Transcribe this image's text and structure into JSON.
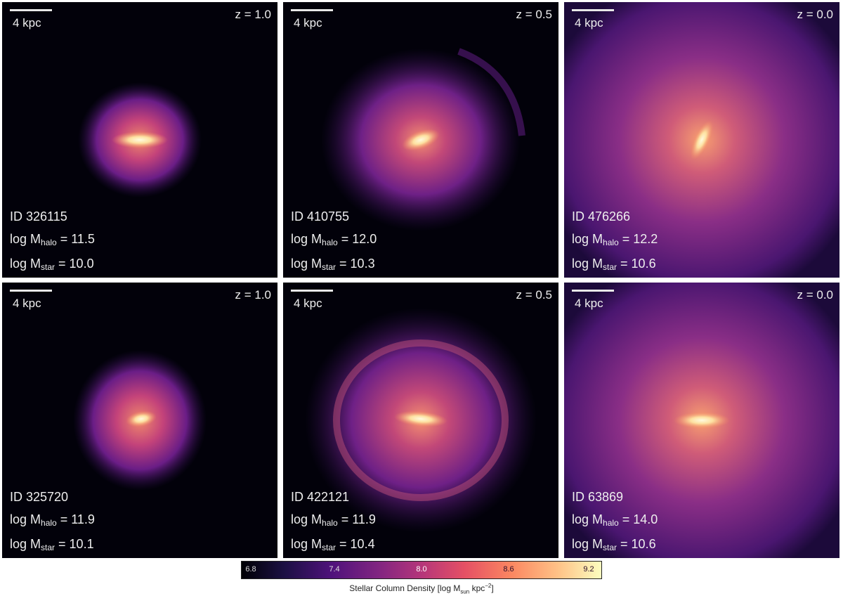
{
  "panels": [
    {
      "scale": "4 kpc",
      "z": "z = 1.0",
      "id": "ID 326115",
      "mhalo_prefix": "log M",
      "mhalo_sub": "halo",
      "mhalo_val": " = 11.5",
      "mstar_prefix": "log M",
      "mstar_sub": "star",
      "mstar_val": " = 10.0"
    },
    {
      "scale": "4 kpc",
      "z": "z = 0.5",
      "id": "ID 410755",
      "mhalo_prefix": "log M",
      "mhalo_sub": "halo",
      "mhalo_val": " = 12.0",
      "mstar_prefix": "log M",
      "mstar_sub": "star",
      "mstar_val": " = 10.3"
    },
    {
      "scale": "4 kpc",
      "z": "z = 0.0",
      "id": "ID 476266",
      "mhalo_prefix": "log M",
      "mhalo_sub": "halo",
      "mhalo_val": " = 12.2",
      "mstar_prefix": "log M",
      "mstar_sub": "star",
      "mstar_val": " = 10.6"
    },
    {
      "scale": "4 kpc",
      "z": "z = 1.0",
      "id": "ID 325720",
      "mhalo_prefix": "log M",
      "mhalo_sub": "halo",
      "mhalo_val": " = 11.9",
      "mstar_prefix": "log M",
      "mstar_sub": "star",
      "mstar_val": " = 10.1"
    },
    {
      "scale": "4 kpc",
      "z": "z = 0.5",
      "id": "ID 422121",
      "mhalo_prefix": "log M",
      "mhalo_sub": "halo",
      "mhalo_val": " = 11.9",
      "mstar_prefix": "log M",
      "mstar_sub": "star",
      "mstar_val": " = 10.4"
    },
    {
      "scale": "4 kpc",
      "z": "z = 0.0",
      "id": "ID 63869",
      "mhalo_prefix": "log M",
      "mhalo_sub": "halo",
      "mhalo_val": " = 14.0",
      "mstar_prefix": "log M",
      "mstar_sub": "star",
      "mstar_val": " = 10.6"
    }
  ],
  "colorbar": {
    "ticks": [
      "6.8",
      "7.4",
      "8.0",
      "8.6",
      "9.2"
    ],
    "label_prefix": "Stellar Column Density [log M",
    "label_sub": "sun",
    "label_mid": " kpc",
    "label_sup": "−2",
    "label_suffix": "]",
    "colormap": "magma"
  }
}
